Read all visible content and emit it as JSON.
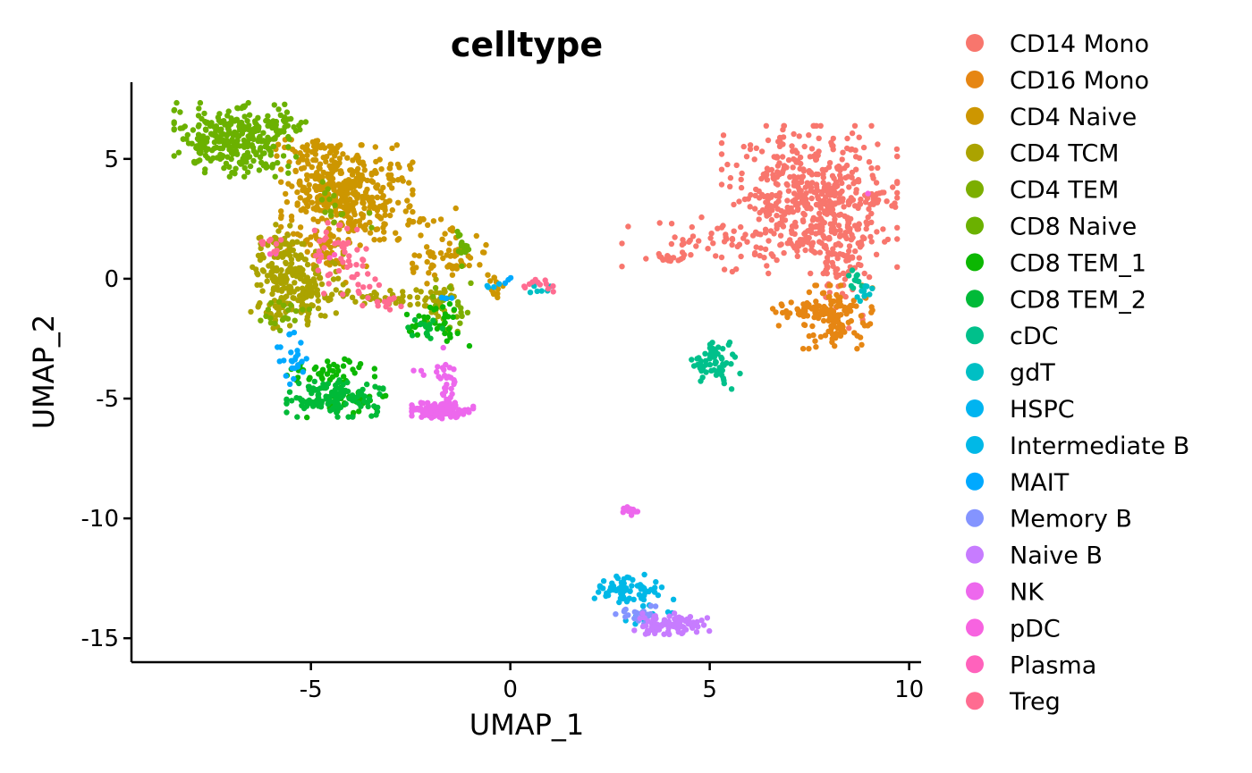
{
  "chart_data": {
    "type": "scatter",
    "title": "celltype",
    "xlabel": "UMAP_1",
    "ylabel": "UMAP_2",
    "xlim": [
      -9.5,
      10.3
    ],
    "ylim": [
      -16.0,
      8.2
    ],
    "xticks": [
      -5,
      0,
      5,
      10
    ],
    "yticks": [
      5,
      0,
      -5,
      -10,
      -15
    ],
    "xtick_labels": [
      "-5",
      "0",
      "5",
      "10"
    ],
    "ytick_labels": [
      "5",
      "0",
      "-5",
      "-10",
      "-15"
    ],
    "grid": false,
    "legend_position": "right",
    "series": [
      {
        "name": "CD14 Mono",
        "color": "#F8766D",
        "clusters": [
          {
            "cx": 7.5,
            "cy": 3.3,
            "sx": 1.0,
            "sy": 1.4,
            "n": 520
          },
          {
            "cx": 8.3,
            "cy": 0.8,
            "sx": 0.4,
            "sy": 1.3,
            "n": 70
          },
          {
            "cx": 5.0,
            "cy": 1.5,
            "sx": 1.0,
            "sy": 0.5,
            "n": 45
          },
          {
            "cx": 3.9,
            "cy": 0.85,
            "sx": 0.25,
            "sy": 0.1,
            "n": 14
          },
          {
            "cx": 9.2,
            "cy": 3.4,
            "sx": 0.15,
            "sy": 0.15,
            "n": 8
          }
        ]
      },
      {
        "name": "CD16 Mono",
        "color": "#E68613",
        "clusters": [
          {
            "cx": 8.2,
            "cy": -1.6,
            "sx": 0.4,
            "sy": 0.6,
            "n": 120
          },
          {
            "cx": 7.3,
            "cy": -1.4,
            "sx": 0.45,
            "sy": 0.3,
            "n": 40
          }
        ]
      },
      {
        "name": "CD4 Naive",
        "color": "#CD9600",
        "clusters": [
          {
            "cx": -4.1,
            "cy": 3.6,
            "sx": 0.75,
            "sy": 0.9,
            "n": 380
          },
          {
            "cx": -4.6,
            "cy": 1.5,
            "sx": 0.45,
            "sy": 0.8,
            "n": 70
          },
          {
            "cx": -1.6,
            "cy": 0.9,
            "sx": 0.5,
            "sy": 0.5,
            "n": 60
          },
          {
            "cx": -5.0,
            "cy": 5.3,
            "sx": 0.4,
            "sy": 0.3,
            "n": 40
          },
          {
            "cx": -2.0,
            "cy": 2.3,
            "sx": 0.4,
            "sy": 0.3,
            "n": 15
          },
          {
            "cx": -0.4,
            "cy": -0.5,
            "sx": 0.12,
            "sy": 0.25,
            "n": 12
          }
        ]
      },
      {
        "name": "CD4 TCM",
        "color": "#ABA300",
        "clusters": [
          {
            "cx": -5.4,
            "cy": -0.3,
            "sx": 0.55,
            "sy": 0.8,
            "n": 220
          },
          {
            "cx": -5.8,
            "cy": 1.3,
            "sx": 0.25,
            "sy": 0.5,
            "n": 40
          },
          {
            "cx": -3.3,
            "cy": -0.8,
            "sx": 0.7,
            "sy": 0.15,
            "n": 40
          },
          {
            "cx": -1.8,
            "cy": -0.8,
            "sx": 0.3,
            "sy": 0.35,
            "n": 35
          }
        ]
      },
      {
        "name": "CD4 TEM",
        "color": "#7CAE00",
        "clusters": [
          {
            "cx": -1.6,
            "cy": -1.2,
            "sx": 0.35,
            "sy": 0.6,
            "n": 25
          },
          {
            "cx": -5.7,
            "cy": -1.5,
            "sx": 0.3,
            "sy": 0.3,
            "n": 20
          },
          {
            "cx": -4.4,
            "cy": 3.0,
            "sx": 0.5,
            "sy": 0.6,
            "n": 15
          }
        ]
      },
      {
        "name": "CD8 Naive",
        "color": "#6BB100",
        "clusters": [
          {
            "cx": -7.0,
            "cy": 5.8,
            "sx": 0.65,
            "sy": 0.7,
            "n": 270
          },
          {
            "cx": -5.8,
            "cy": 6.4,
            "sx": 0.45,
            "sy": 0.4,
            "n": 45
          },
          {
            "cx": -1.2,
            "cy": 1.2,
            "sx": 0.12,
            "sy": 0.35,
            "n": 15
          },
          {
            "cx": -6.0,
            "cy": 4.5,
            "sx": 0.3,
            "sy": 0.4,
            "n": 15
          }
        ]
      },
      {
        "name": "CD8 TEM_1",
        "color": "#0CB702",
        "clusters": [
          {
            "cx": -4.5,
            "cy": -3.9,
            "sx": 0.5,
            "sy": 0.25,
            "n": 45
          },
          {
            "cx": -1.7,
            "cy": -1.8,
            "sx": 0.35,
            "sy": 0.5,
            "n": 30
          },
          {
            "cx": -4.0,
            "cy": -5.2,
            "sx": 0.5,
            "sy": 0.3,
            "n": 30
          },
          {
            "cx": -2.4,
            "cy": -1.9,
            "sx": 0.2,
            "sy": 0.2,
            "n": 8
          }
        ]
      },
      {
        "name": "CD8 TEM_2",
        "color": "#00BA38",
        "clusters": [
          {
            "cx": -4.4,
            "cy": -5.0,
            "sx": 0.55,
            "sy": 0.35,
            "n": 130
          },
          {
            "cx": -2.2,
            "cy": -2.1,
            "sx": 0.3,
            "sy": 0.3,
            "n": 15
          }
        ]
      },
      {
        "name": "cDC",
        "color": "#00C08B",
        "clusters": [
          {
            "cx": 5.1,
            "cy": -3.5,
            "sx": 0.3,
            "sy": 0.5,
            "n": 60
          },
          {
            "cx": 8.6,
            "cy": 0.0,
            "sx": 0.1,
            "sy": 0.25,
            "n": 10
          }
        ]
      },
      {
        "name": "gdT",
        "color": "#00BFC4",
        "clusters": [
          {
            "cx": 8.9,
            "cy": -0.6,
            "sx": 0.1,
            "sy": 0.15,
            "n": 10
          },
          {
            "cx": 0.7,
            "cy": -0.5,
            "sx": 0.2,
            "sy": 0.1,
            "n": 6
          }
        ]
      },
      {
        "name": "HSPC",
        "color": "#00B4F0",
        "clusters": [
          {
            "cx": -0.5,
            "cy": -0.3,
            "sx": 0.1,
            "sy": 0.08,
            "n": 4
          }
        ]
      },
      {
        "name": "Intermediate B",
        "color": "#00B8E7",
        "clusters": [
          {
            "cx": 3.1,
            "cy": -13.0,
            "sx": 0.45,
            "sy": 0.3,
            "n": 70
          },
          {
            "cx": 3.4,
            "cy": -14.0,
            "sx": 0.3,
            "sy": 0.25,
            "n": 10
          }
        ]
      },
      {
        "name": "MAIT",
        "color": "#00A9FF",
        "clusters": [
          {
            "cx": -5.4,
            "cy": -3.3,
            "sx": 0.2,
            "sy": 0.5,
            "n": 25
          },
          {
            "cx": -1.6,
            "cy": -0.9,
            "sx": 0.1,
            "sy": 0.1,
            "n": 4
          },
          {
            "cx": 0.0,
            "cy": -0.1,
            "sx": 0.1,
            "sy": 0.1,
            "n": 3
          }
        ]
      },
      {
        "name": "Memory B",
        "color": "#8494FF",
        "clusters": [
          {
            "cx": 3.3,
            "cy": -14.0,
            "sx": 0.3,
            "sy": 0.2,
            "n": 25
          }
        ]
      },
      {
        "name": "Naive B",
        "color": "#C77CFF",
        "clusters": [
          {
            "cx": 4.0,
            "cy": -14.4,
            "sx": 0.45,
            "sy": 0.2,
            "n": 90
          }
        ]
      },
      {
        "name": "NK",
        "color": "#ED68ED",
        "clusters": [
          {
            "cx": -1.7,
            "cy": -5.5,
            "sx": 0.35,
            "sy": 0.15,
            "n": 130
          },
          {
            "cx": -1.6,
            "cy": -4.2,
            "sx": 0.12,
            "sy": 0.6,
            "n": 30
          },
          {
            "cx": 3.0,
            "cy": -9.7,
            "sx": 0.12,
            "sy": 0.08,
            "n": 12
          },
          {
            "cx": -2.3,
            "cy": -3.8,
            "sx": 0.1,
            "sy": 0.1,
            "n": 3
          }
        ]
      },
      {
        "name": "pDC",
        "color": "#F763E0",
        "clusters": [
          {
            "cx": 9.0,
            "cy": 3.6,
            "sx": 0.1,
            "sy": 0.1,
            "n": 1
          }
        ]
      },
      {
        "name": "Plasma",
        "color": "#FF62BC",
        "clusters": [
          {
            "cx": -4.3,
            "cy": 0.8,
            "sx": 0.35,
            "sy": 0.2,
            "n": 4
          },
          {
            "cx": -6.0,
            "cy": 1.2,
            "sx": 0.15,
            "sy": 0.15,
            "n": 2
          }
        ]
      },
      {
        "name": "Treg",
        "color": "#FF6C91",
        "clusters": [
          {
            "cx": -4.2,
            "cy": 0.5,
            "sx": 0.5,
            "sy": 0.6,
            "n": 45
          },
          {
            "cx": -6.0,
            "cy": 1.4,
            "sx": 0.2,
            "sy": 0.25,
            "n": 10
          },
          {
            "cx": -3.2,
            "cy": -1.0,
            "sx": 0.3,
            "sy": 0.15,
            "n": 15
          },
          {
            "cx": 0.6,
            "cy": -0.3,
            "sx": 0.3,
            "sy": 0.12,
            "n": 12
          },
          {
            "cx": -4.4,
            "cy": 2.0,
            "sx": 0.3,
            "sy": 0.3,
            "n": 8
          }
        ]
      }
    ]
  }
}
